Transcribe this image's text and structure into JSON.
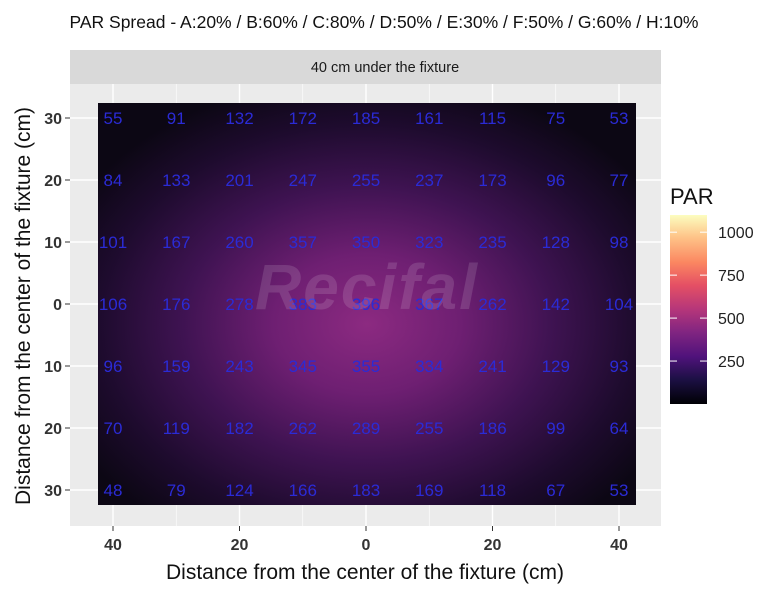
{
  "chart_data": {
    "type": "heatmap",
    "title": "PAR Spread - A:20% / B:60% / C:80% / D:50% / E:30% / F:50% / G:60% / H:10%",
    "facet_label": "40 cm under the fixture",
    "xlabel": "Distance from the center of the fixture (cm)",
    "ylabel": "Distance from the center of the fixture (cm)",
    "x_values": [
      -40,
      -30,
      -20,
      -10,
      0,
      10,
      20,
      30,
      40
    ],
    "y_values": [
      30,
      20,
      10,
      0,
      -10,
      -20,
      -30
    ],
    "x_ticks": [
      {
        "value": -40,
        "label": "40"
      },
      {
        "value": -20,
        "label": "20"
      },
      {
        "value": 0,
        "label": "0"
      },
      {
        "value": 20,
        "label": "20"
      },
      {
        "value": 40,
        "label": "40"
      }
    ],
    "y_ticks": [
      {
        "value": 30,
        "label": "30"
      },
      {
        "value": 20,
        "label": "20"
      },
      {
        "value": 10,
        "label": "10"
      },
      {
        "value": 0,
        "label": "0"
      },
      {
        "value": -10,
        "label": "10"
      },
      {
        "value": -20,
        "label": "20"
      },
      {
        "value": -30,
        "label": "30"
      }
    ],
    "values": [
      [
        55,
        91,
        132,
        172,
        185,
        161,
        115,
        75,
        53
      ],
      [
        84,
        133,
        201,
        247,
        255,
        237,
        173,
        96,
        77
      ],
      [
        101,
        167,
        260,
        357,
        350,
        323,
        235,
        128,
        98
      ],
      [
        106,
        176,
        278,
        383,
        396,
        367,
        262,
        142,
        104
      ],
      [
        96,
        159,
        243,
        345,
        355,
        334,
        241,
        129,
        93
      ],
      [
        70,
        119,
        182,
        262,
        289,
        255,
        186,
        99,
        64
      ],
      [
        48,
        79,
        124,
        166,
        183,
        169,
        118,
        67,
        53
      ]
    ],
    "legend": {
      "title": "PAR",
      "ticks": [
        1000,
        750,
        500,
        250
      ],
      "range": [
        0,
        1100
      ],
      "colormap": "magma"
    },
    "label_color": "#2b2bd6",
    "panel_bg": "#ebebeb",
    "strip_bg": "#d9d9d9",
    "grid": true
  }
}
